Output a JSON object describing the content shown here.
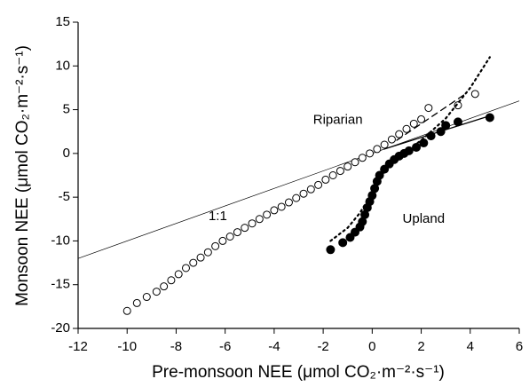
{
  "chart_data": {
    "type": "scatter",
    "xlabel": "Pre-monsoon NEE (μmol CO₂·m⁻²·s⁻¹)",
    "ylabel": "Monsoon NEE (μmol CO₂·m⁻²·s⁻¹)",
    "xlim": [
      -12,
      6
    ],
    "xticks": [
      -12,
      -10,
      -8,
      -6,
      -4,
      -2,
      0,
      2,
      4,
      6
    ],
    "ylim": [
      -20,
      15
    ],
    "yticks": [
      -20,
      -15,
      -10,
      -5,
      0,
      5,
      10,
      15
    ],
    "reference_label": "1:1",
    "series": [
      {
        "name": "Riparian",
        "marker": "open",
        "color": "#000000",
        "x": [
          -10,
          -9.6,
          -9.2,
          -8.8,
          -8.5,
          -8.2,
          -7.9,
          -7.6,
          -7.3,
          -7.0,
          -6.7,
          -6.4,
          -6.1,
          -5.8,
          -5.5,
          -5.2,
          -4.9,
          -4.6,
          -4.3,
          -4.0,
          -3.7,
          -3.4,
          -3.1,
          -2.8,
          -2.5,
          -2.2,
          -1.9,
          -1.6,
          -1.3,
          -1.0,
          -0.7,
          -0.4,
          -0.1,
          0.2,
          0.5,
          0.8,
          1.1,
          1.4,
          1.7,
          2.0,
          2.3,
          3.5,
          4.2
        ],
        "y": [
          -18,
          -17.1,
          -16.4,
          -15.8,
          -15.2,
          -14.5,
          -13.8,
          -13.1,
          -12.5,
          -11.9,
          -11.3,
          -10.6,
          -10.0,
          -9.5,
          -9.0,
          -8.5,
          -8.0,
          -7.5,
          -7.0,
          -6.5,
          -6.1,
          -5.6,
          -5.1,
          -4.6,
          -4.1,
          -3.6,
          -3.0,
          -2.5,
          -2.0,
          -1.5,
          -1.0,
          -0.5,
          0.0,
          0.5,
          1.0,
          1.6,
          2.2,
          2.8,
          3.4,
          3.9,
          5.2,
          5.5,
          6.8
        ],
        "fits": [
          {
            "style": "dashed",
            "x": [
              1.0,
              3.8
            ],
            "y": [
              1.5,
              6.8
            ]
          }
        ]
      },
      {
        "name": "Upland",
        "marker": "filled",
        "color": "#000000",
        "x": [
          -1.7,
          -1.2,
          -0.9,
          -0.7,
          -0.5,
          -0.4,
          -0.3,
          -0.2,
          -0.1,
          0.0,
          0.1,
          0.2,
          0.3,
          0.5,
          0.7,
          0.9,
          1.1,
          1.3,
          1.5,
          1.8,
          2.1,
          2.4,
          2.8,
          3.0,
          3.5,
          4.8
        ],
        "y": [
          -11,
          -10.2,
          -9.6,
          -9.0,
          -8.4,
          -7.8,
          -7.0,
          -6.2,
          -5.5,
          -4.8,
          -4.0,
          -3.2,
          -2.5,
          -1.8,
          -1.2,
          -0.7,
          -0.3,
          0.0,
          0.3,
          0.7,
          1.2,
          2.0,
          2.5,
          3.2,
          3.6,
          4.1
        ],
        "fits": [
          {
            "style": "solid",
            "x": [
              0.5,
              4.8
            ],
            "y": [
              0.5,
              4.3
            ]
          },
          {
            "style": "dotted",
            "x": [
              -1.7,
              -1,
              -0.5,
              0,
              0.5,
              1,
              2,
              3,
              4,
              4.8
            ],
            "y": [
              -10,
              -8.5,
              -6.8,
              -4.5,
              -2,
              -0.5,
              1.5,
              4,
              7.5,
              11
            ]
          }
        ]
      }
    ]
  }
}
